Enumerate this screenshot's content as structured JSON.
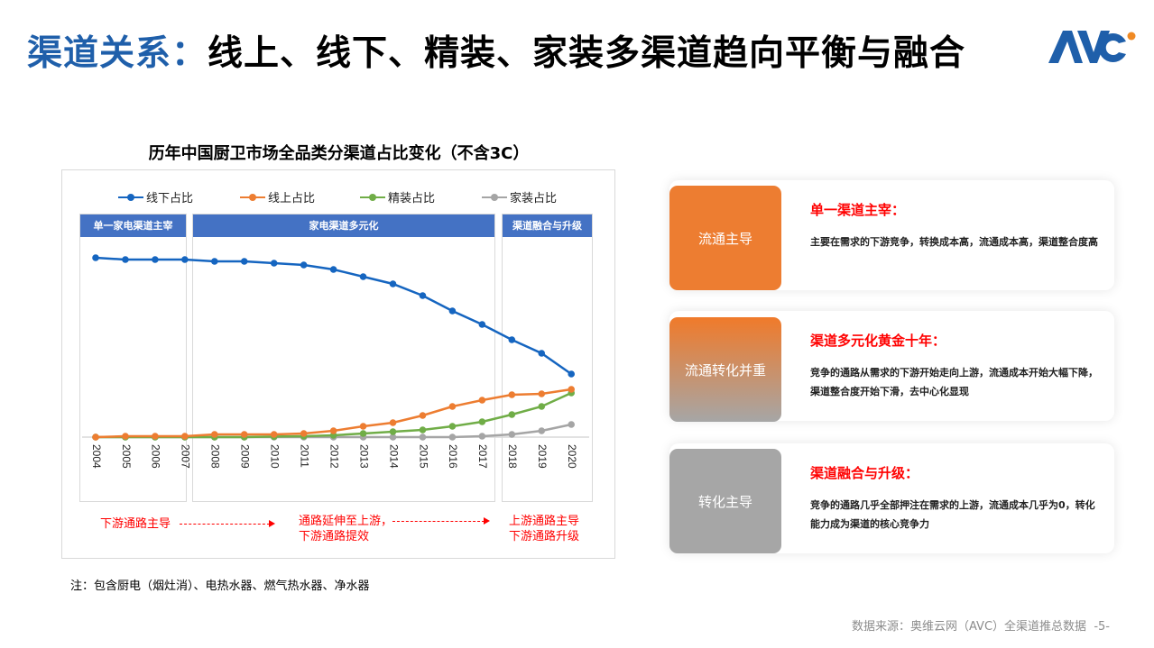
{
  "header": {
    "title_highlight": "渠道关系：",
    "title_rest": "线上、线下、精装、家装多渠道趋向平衡与融合",
    "logo_text": "AVC",
    "logo_color": "#1f5faa",
    "logo_dot_color": "#f08a24"
  },
  "chart": {
    "title": "历年中国厨卫市场全品类分渠道占比变化（不含3C）",
    "phases": [
      {
        "label": "单一家电渠道主宰",
        "from": "2004",
        "to": "2007"
      },
      {
        "label": "家电渠道多元化",
        "from": "2008",
        "to": "2017"
      },
      {
        "label": "渠道融合与升级",
        "from": "2018",
        "to": "2020"
      }
    ],
    "flow": {
      "stage1": "下游通路主导",
      "stage2_line1": "通路延伸至上游，",
      "stage2_line2": "下游通路提效",
      "stage3_line1": "上游通路主导",
      "stage3_line2": "下游通路升级"
    },
    "note": "注：包含厨电（烟灶消）、电热水器、燃气热水器、净水器"
  },
  "chart_data": {
    "type": "line",
    "title": "历年中国厨卫市场全品类分渠道占比变化（不含3C）",
    "xlabel": "",
    "ylabel": "",
    "x": [
      "2004",
      "2005",
      "2006",
      "2007",
      "2008",
      "2009",
      "2010",
      "2011",
      "2012",
      "2013",
      "2014",
      "2015",
      "2016",
      "2017",
      "2018",
      "2019",
      "2020"
    ],
    "series": [
      {
        "name": "线下占比",
        "color": "#1565c0",
        "values": [
          99.5,
          98.5,
          98.5,
          98.5,
          97.5,
          97.5,
          96.5,
          95.5,
          93,
          89,
          85,
          78.5,
          70,
          62.5,
          54,
          46.5,
          35
        ]
      },
      {
        "name": "线上占比",
        "color": "#ed7d31",
        "values": [
          0,
          0.5,
          0.5,
          0.5,
          1.5,
          1.5,
          1.5,
          2,
          3.5,
          6,
          8,
          12,
          17,
          20.5,
          23.5,
          24,
          26.5
        ]
      },
      {
        "name": "精装占比",
        "color": "#70ad47",
        "values": [
          0,
          0,
          0,
          0,
          0,
          0,
          0.3,
          0.5,
          1,
          2,
          3,
          4,
          6,
          8.5,
          12.5,
          17,
          24.5
        ]
      },
      {
        "name": "家装占比",
        "color": "#a5a5a5",
        "values": [
          0,
          0,
          0,
          0,
          0,
          0,
          0,
          0,
          0,
          0,
          0,
          0,
          0,
          0.5,
          1.5,
          3.5,
          7
        ]
      }
    ],
    "ylim": [
      0,
      100
    ],
    "grid": false,
    "y_axis_labels_shown": false,
    "legend_position": "top",
    "annotations": [
      "单一家电渠道主宰",
      "家电渠道多元化",
      "渠道融合与升级"
    ]
  },
  "cards": [
    {
      "badge": "流通主导",
      "heading": "单一渠道主宰：",
      "body": "主要在需求的下游竞争，转换成本高，流通成本高，渠道整合度高",
      "badge_color": "#ed7d31"
    },
    {
      "badge": "流通转化并重",
      "heading": "渠道多元化黄金十年：",
      "body": "竞争的通路从需求的下游开始走向上游，流通成本开始大幅下降，渠道整合度开始下滑，去中心化显现",
      "badge_color_top": "#f07a2a",
      "badge_color_bottom": "#a6a6a6"
    },
    {
      "badge": "转化主导",
      "heading": "渠道融合与升级：",
      "body": "竞争的通路几乎全部押注在需求的上游，流通成本几乎为0，转化能力成为渠道的核心竞争力",
      "badge_color": "#a6a6a6"
    }
  ],
  "footer": {
    "source": "数据来源：奥维云网（AVC）全渠道推总数据",
    "page": "-5-"
  }
}
